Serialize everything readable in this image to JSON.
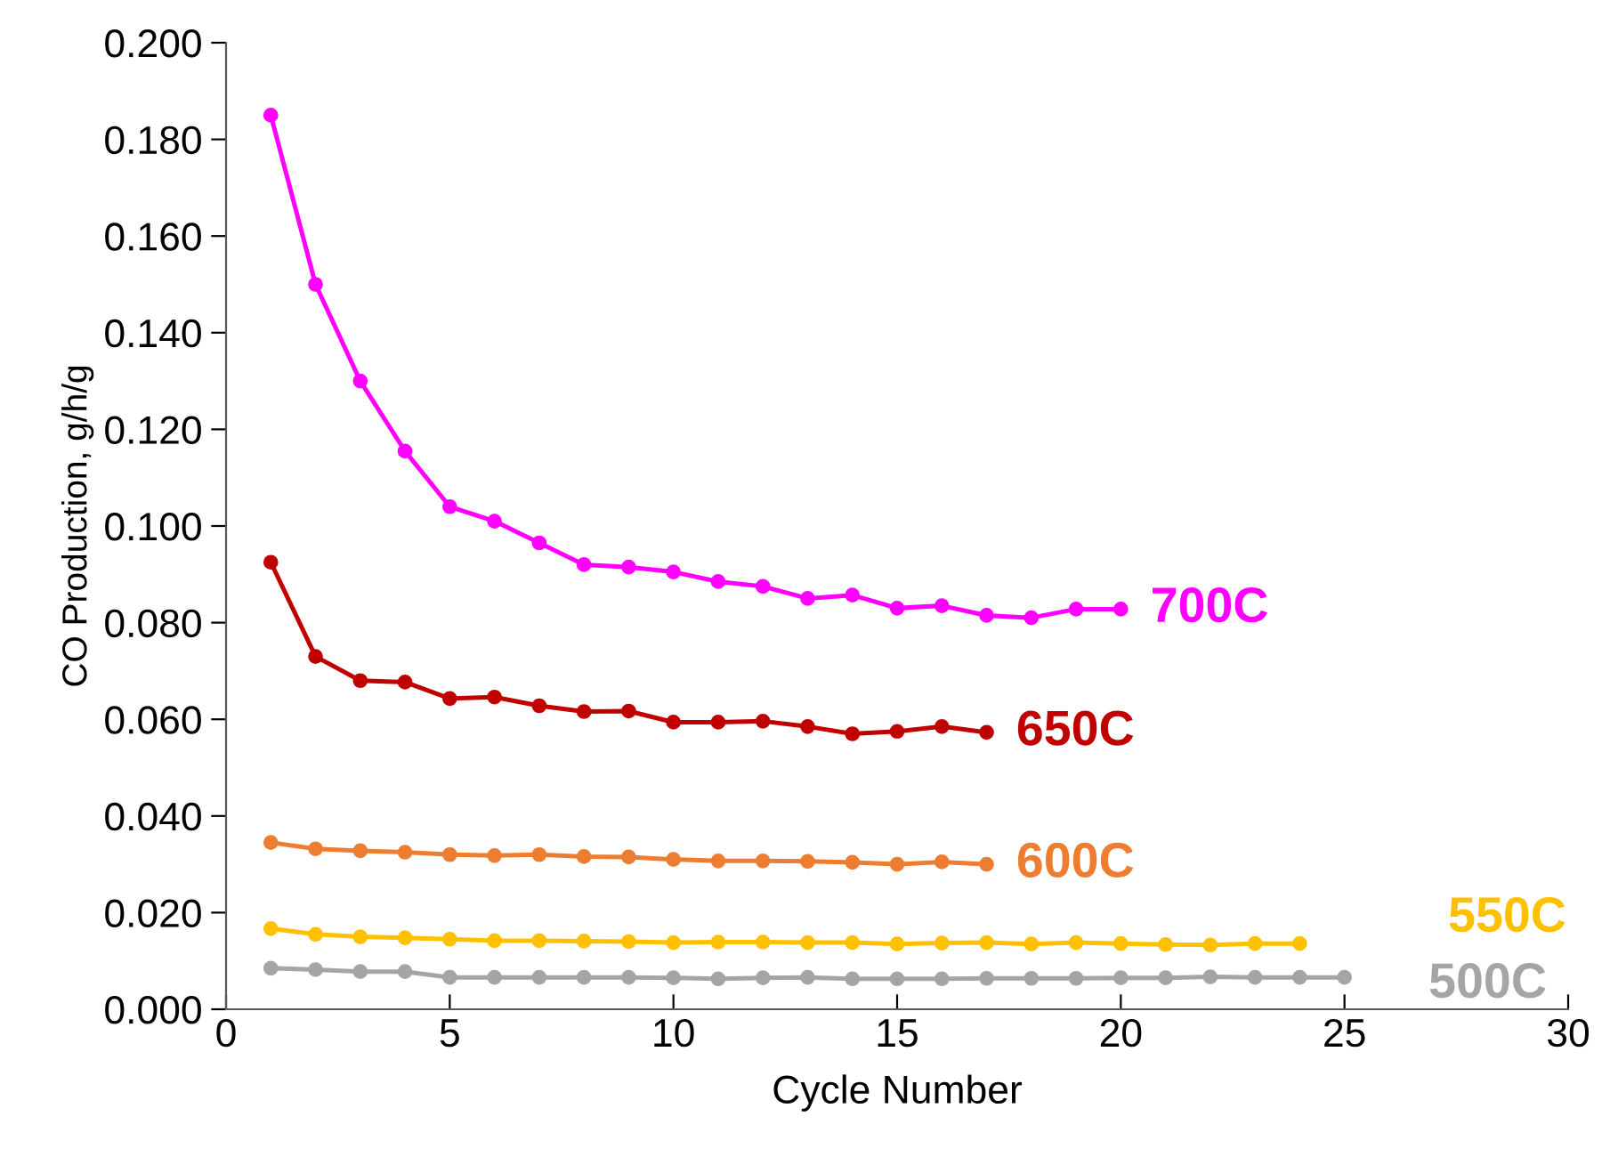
{
  "chart_data": {
    "type": "line",
    "xlabel": "Cycle Number",
    "ylabel": "CO Production, g/h/g",
    "xlim": [
      0,
      30
    ],
    "xticks": [
      0,
      5,
      10,
      15,
      20,
      25,
      30
    ],
    "ylim": [
      0,
      0.2
    ],
    "yticks": [
      {
        "value": 0,
        "label": "0.000"
      },
      {
        "value": 0.02,
        "label": "0.020"
      },
      {
        "value": 0.04,
        "label": "0.040"
      },
      {
        "value": 0.06,
        "label": "0.060"
      },
      {
        "value": 0.08,
        "label": "0.080"
      },
      {
        "value": 0.1,
        "label": "0.100"
      },
      {
        "value": 0.12,
        "label": "0.120"
      },
      {
        "value": 0.14,
        "label": "0.140"
      },
      {
        "value": 0.16,
        "label": "0.160"
      },
      {
        "value": 0.18,
        "label": "0.180"
      },
      {
        "value": 0.2,
        "label": "0.200"
      }
    ],
    "grid": false,
    "marker": "circle",
    "line_style": "solid",
    "series": [
      {
        "name": "700C",
        "color": "#ff00ff",
        "x": [
          1,
          2,
          3,
          4,
          5,
          6,
          7,
          8,
          9,
          10,
          11,
          12,
          13,
          14,
          15,
          16,
          17,
          18,
          19,
          20
        ],
        "values": [
          0.185,
          0.15,
          0.13,
          0.1155,
          0.104,
          0.101,
          0.0965,
          0.092,
          0.0915,
          0.0905,
          0.0885,
          0.0875,
          0.085,
          0.0857,
          0.083,
          0.0835,
          0.0815,
          0.081,
          0.0828,
          0.0828
        ]
      },
      {
        "name": "650C",
        "color": "#c00000",
        "x": [
          1,
          2,
          3,
          4,
          5,
          6,
          7,
          8,
          9,
          10,
          11,
          12,
          13,
          14,
          15,
          16,
          17
        ],
        "values": [
          0.0925,
          0.073,
          0.068,
          0.0677,
          0.0643,
          0.0646,
          0.0628,
          0.0616,
          0.0617,
          0.0594,
          0.0594,
          0.0596,
          0.0585,
          0.057,
          0.0575,
          0.0585,
          0.0573
        ]
      },
      {
        "name": "600C",
        "color": "#ed7d31",
        "x": [
          1,
          2,
          3,
          4,
          5,
          6,
          7,
          8,
          9,
          10,
          11,
          12,
          13,
          14,
          15,
          16,
          17
        ],
        "values": [
          0.0345,
          0.0332,
          0.0328,
          0.0325,
          0.032,
          0.0318,
          0.032,
          0.0316,
          0.0315,
          0.031,
          0.0307,
          0.0307,
          0.0306,
          0.0304,
          0.03,
          0.0305,
          0.03
        ]
      },
      {
        "name": "550C",
        "color": "#ffc000",
        "x": [
          1,
          2,
          3,
          4,
          5,
          6,
          7,
          8,
          9,
          10,
          11,
          12,
          13,
          14,
          15,
          16,
          17,
          18,
          19,
          20,
          21,
          22,
          23,
          24
        ],
        "values": [
          0.0167,
          0.0155,
          0.015,
          0.0148,
          0.0145,
          0.0142,
          0.0142,
          0.0141,
          0.014,
          0.0138,
          0.0139,
          0.0139,
          0.0138,
          0.0138,
          0.0135,
          0.0137,
          0.0138,
          0.0135,
          0.0138,
          0.0136,
          0.0134,
          0.0133,
          0.0136,
          0.0136
        ]
      },
      {
        "name": "500C",
        "color": "#a5a5a5",
        "x": [
          1,
          2,
          3,
          4,
          5,
          6,
          7,
          8,
          9,
          10,
          11,
          12,
          13,
          14,
          15,
          16,
          17,
          18,
          19,
          20,
          21,
          22,
          23,
          24,
          25
        ],
        "values": [
          0.0085,
          0.0082,
          0.0078,
          0.0078,
          0.0066,
          0.0066,
          0.0066,
          0.0066,
          0.0066,
          0.0065,
          0.0063,
          0.0065,
          0.0066,
          0.0063,
          0.0063,
          0.0063,
          0.0064,
          0.0064,
          0.0064,
          0.0065,
          0.0065,
          0.0067,
          0.0066,
          0.0066,
          0.0066
        ]
      }
    ]
  }
}
